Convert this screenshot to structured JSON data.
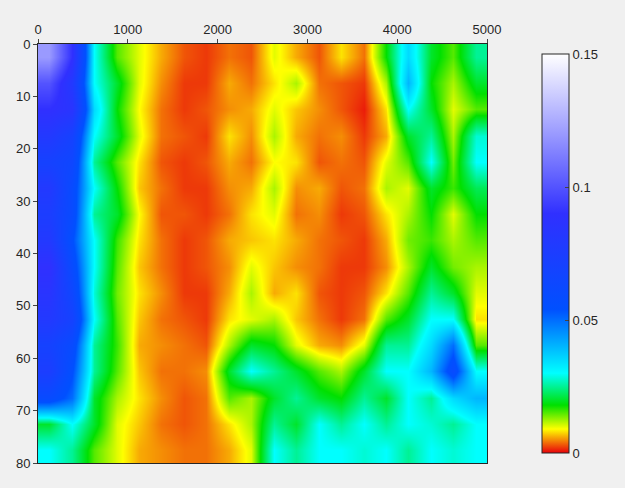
{
  "chart_data": {
    "type": "heatmap",
    "x": [
      125,
      375,
      625,
      875,
      1125,
      1375,
      1625,
      1875,
      2125,
      2375,
      2625,
      2875,
      3125,
      3375,
      3625,
      3875,
      4125,
      4375,
      4625,
      4875
    ],
    "y": [
      2.5,
      7.5,
      12.5,
      17.5,
      22.5,
      27.5,
      32.5,
      37.5,
      42.5,
      47.5,
      52.5,
      57.5,
      62.5,
      67.5,
      72.5,
      77.5
    ],
    "z": [
      [
        0.12,
        0.09,
        0.03,
        0.015,
        0.01,
        0.006,
        0.003,
        0.002,
        0.004,
        0.003,
        0.01,
        0.006,
        0.003,
        0.008,
        0.004,
        0.018,
        0.035,
        0.02,
        0.015,
        0.025
      ],
      [
        0.1,
        0.08,
        0.03,
        0.02,
        0.01,
        0.005,
        0.002,
        0.002,
        0.006,
        0.004,
        0.008,
        0.012,
        0.004,
        0.003,
        0.002,
        0.012,
        0.04,
        0.018,
        0.012,
        0.02
      ],
      [
        0.09,
        0.085,
        0.035,
        0.018,
        0.009,
        0.004,
        0.002,
        0.003,
        0.005,
        0.006,
        0.01,
        0.007,
        0.005,
        0.003,
        0.001,
        0.008,
        0.03,
        0.02,
        0.01,
        0.015
      ],
      [
        0.08,
        0.07,
        0.03,
        0.02,
        0.01,
        0.004,
        0.003,
        0.002,
        0.008,
        0.005,
        0.012,
        0.006,
        0.004,
        0.005,
        0.002,
        0.006,
        0.02,
        0.025,
        0.012,
        0.028
      ],
      [
        0.07,
        0.065,
        0.025,
        0.015,
        0.008,
        0.003,
        0.002,
        0.003,
        0.006,
        0.004,
        0.009,
        0.008,
        0.003,
        0.004,
        0.003,
        0.01,
        0.015,
        0.03,
        0.014,
        0.03
      ],
      [
        0.08,
        0.06,
        0.03,
        0.018,
        0.007,
        0.004,
        0.002,
        0.002,
        0.005,
        0.006,
        0.012,
        0.005,
        0.006,
        0.003,
        0.004,
        0.012,
        0.01,
        0.02,
        0.016,
        0.022
      ],
      [
        0.075,
        0.06,
        0.025,
        0.02,
        0.009,
        0.003,
        0.003,
        0.002,
        0.004,
        0.008,
        0.01,
        0.004,
        0.005,
        0.002,
        0.003,
        0.008,
        0.012,
        0.018,
        0.01,
        0.018
      ],
      [
        0.08,
        0.055,
        0.03,
        0.016,
        0.008,
        0.004,
        0.002,
        0.003,
        0.006,
        0.007,
        0.008,
        0.006,
        0.004,
        0.003,
        0.002,
        0.006,
        0.014,
        0.016,
        0.012,
        0.015
      ],
      [
        0.09,
        0.06,
        0.03,
        0.015,
        0.007,
        0.004,
        0.002,
        0.003,
        0.005,
        0.01,
        0.007,
        0.005,
        0.004,
        0.002,
        0.002,
        0.005,
        0.012,
        0.02,
        0.014,
        0.012
      ],
      [
        0.085,
        0.065,
        0.028,
        0.014,
        0.008,
        0.005,
        0.002,
        0.002,
        0.006,
        0.012,
        0.006,
        0.008,
        0.003,
        0.002,
        0.003,
        0.008,
        0.015,
        0.025,
        0.02,
        0.01
      ],
      [
        0.08,
        0.07,
        0.03,
        0.015,
        0.007,
        0.004,
        0.003,
        0.002,
        0.008,
        0.01,
        0.012,
        0.007,
        0.004,
        0.002,
        0.004,
        0.015,
        0.02,
        0.03,
        0.03,
        0.008
      ],
      [
        0.07,
        0.06,
        0.025,
        0.016,
        0.006,
        0.005,
        0.004,
        0.003,
        0.012,
        0.02,
        0.018,
        0.01,
        0.006,
        0.005,
        0.01,
        0.025,
        0.025,
        0.035,
        0.05,
        0.015
      ],
      [
        0.075,
        0.055,
        0.025,
        0.015,
        0.007,
        0.004,
        0.004,
        0.005,
        0.02,
        0.03,
        0.025,
        0.02,
        0.015,
        0.012,
        0.02,
        0.03,
        0.03,
        0.04,
        0.06,
        0.03
      ],
      [
        0.06,
        0.05,
        0.02,
        0.012,
        0.008,
        0.005,
        0.003,
        0.004,
        0.015,
        0.012,
        0.02,
        0.025,
        0.02,
        0.018,
        0.025,
        0.02,
        0.03,
        0.025,
        0.035,
        0.04
      ],
      [
        0.02,
        0.03,
        0.02,
        0.01,
        0.007,
        0.004,
        0.003,
        0.004,
        0.008,
        0.012,
        0.025,
        0.02,
        0.03,
        0.025,
        0.03,
        0.025,
        0.03,
        0.028,
        0.025,
        0.03
      ],
      [
        0.03,
        0.025,
        0.015,
        0.01,
        0.006,
        0.005,
        0.004,
        0.004,
        0.006,
        0.01,
        0.03,
        0.025,
        0.03,
        0.03,
        0.028,
        0.03,
        0.025,
        0.03,
        0.028,
        0.03
      ]
    ],
    "xlim": [
      0,
      5000
    ],
    "xticks": [
      0,
      1000,
      2000,
      3000,
      4000,
      5000
    ],
    "ylim": [
      80,
      0
    ],
    "yticks": [
      0,
      10,
      20,
      30,
      40,
      50,
      60,
      70,
      80
    ],
    "zlim": [
      0,
      0.15
    ],
    "zticks": [
      0,
      0.05,
      0.1,
      0.15
    ]
  }
}
